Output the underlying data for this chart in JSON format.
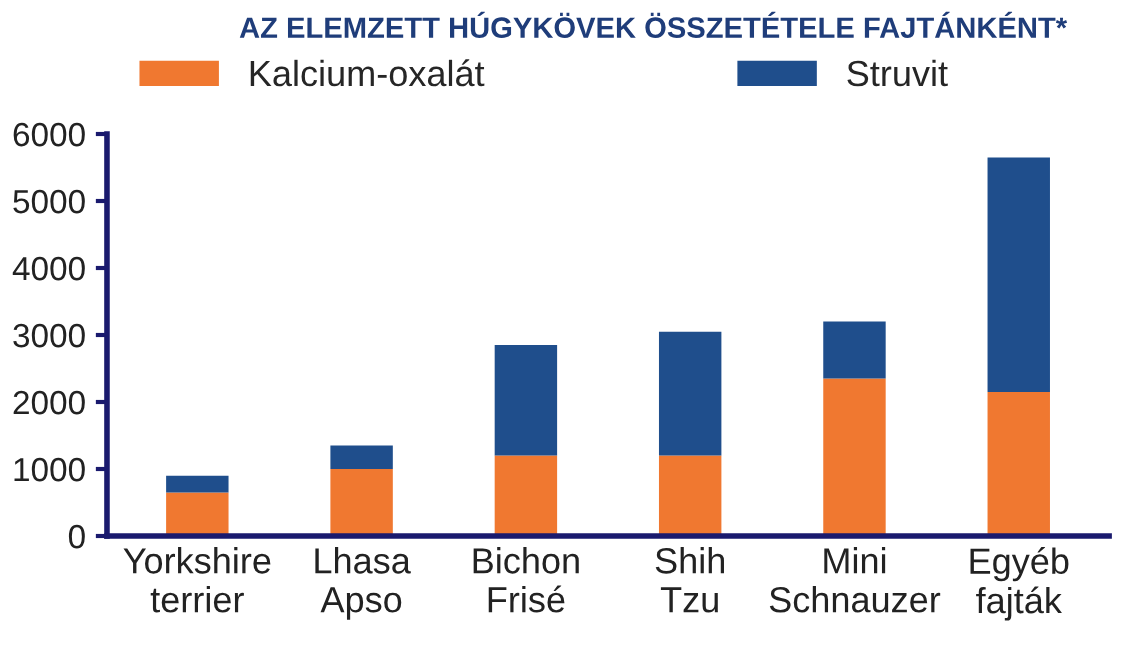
{
  "chart_data": {
    "type": "bar",
    "stacked": true,
    "title": "AZ ELEMZETT HÚGYKÖVEK ÖSSZETÉTELE FAJTÁNKÉNT*",
    "categories": [
      "Yorkshire\nterrier",
      "Lhasa\nApso",
      "Bichon\nFrisé",
      "Shih\nTzu",
      "Mini\nSchnauzer",
      "Egyéb\nfajták"
    ],
    "series": [
      {
        "name": "Kalcium-oxalát",
        "color": "#f07830",
        "values": [
          650,
          1000,
          1200,
          1200,
          2350,
          2150
        ]
      },
      {
        "name": "Struvit",
        "color": "#1f4e8c",
        "values": [
          250,
          350,
          1650,
          1850,
          850,
          3500
        ]
      }
    ],
    "ylim": [
      0,
      6000
    ],
    "yticks": [
      0,
      1000,
      2000,
      3000,
      4000,
      5000,
      6000
    ],
    "grid": false,
    "legend": "top"
  }
}
